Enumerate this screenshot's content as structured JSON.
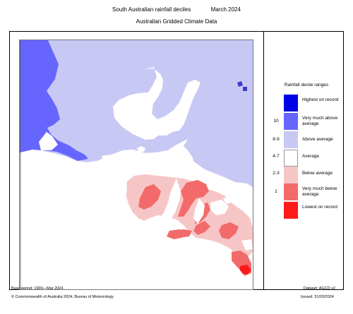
{
  "header": {
    "title": "South Australian rainfall deciles",
    "date": "March 2024",
    "subtitle": "Australian Gridded Climate Data"
  },
  "legend": {
    "title": "Rainfall decile ranges",
    "items": [
      {
        "label": "Highest on record",
        "value": "",
        "color": "#0000e6"
      },
      {
        "label": "Very much above average",
        "value": "10",
        "color": "#6666ff"
      },
      {
        "label": "Above average",
        "value": "8-9",
        "color": "#c8c8f5"
      },
      {
        "label": "Average",
        "value": "4-7",
        "color": "#ffffff"
      },
      {
        "label": "Below average",
        "value": "2-3",
        "color": "#f6c6c6"
      },
      {
        "label": "Very much below average",
        "value": "1",
        "color": "#f26a6a"
      },
      {
        "label": "Lowest on record",
        "value": "",
        "color": "#ff1a1a"
      }
    ]
  },
  "footer": {
    "base_period": "Base period: 1900—Mar 2024",
    "dataset": "Dataset: AGCD v2",
    "copyright": "© Commonwealth of Australia 2024, Bureau of Meteorology",
    "issued": "Issued: 31/03/2024"
  },
  "colors": {
    "sea": "#ffffff",
    "frame": "#000000"
  }
}
